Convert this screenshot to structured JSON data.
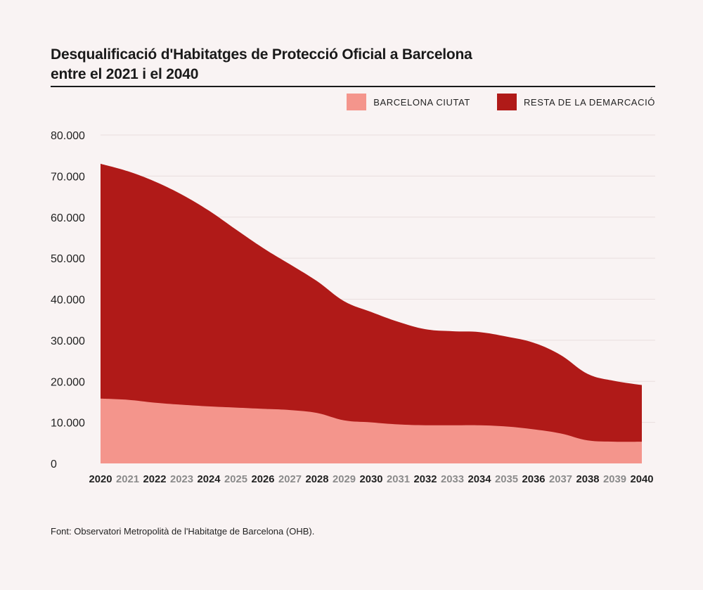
{
  "title_line1": "Desqualificació d'Habitatges de Protecció Oficial a Barcelona",
  "title_line2": "entre el 2021 i el 2040",
  "source": "Font: Observatori Metropolità de l'Habitatge de Barcelona (OHB).",
  "colors": {
    "background": "#f9f3f3",
    "barcelona_ciutat": "#f4958c",
    "resta": "#b01a18",
    "grid": "#e9dede",
    "tick_dark": "#222222",
    "tick_light": "#8a8a8a"
  },
  "chart_data": {
    "type": "area",
    "stacked": true,
    "title": "Desqualificació d'Habitatges de Protecció Oficial a Barcelona entre el 2021 i el 2040",
    "xlabel": "",
    "ylabel": "",
    "ylim": [
      0,
      80000
    ],
    "grid": true,
    "legend_position": "top-right",
    "x": [
      "2020",
      "2021",
      "2022",
      "2023",
      "2024",
      "2025",
      "2026",
      "2027",
      "2028",
      "2029",
      "2030",
      "2031",
      "2032",
      "2033",
      "2034",
      "2035",
      "2036",
      "2037",
      "2038",
      "2039",
      "2040"
    ],
    "x_emphasis": [
      true,
      false,
      true,
      false,
      true,
      false,
      true,
      false,
      true,
      false,
      true,
      false,
      true,
      false,
      true,
      false,
      true,
      false,
      true,
      false,
      true
    ],
    "yticks": [
      {
        "value": 0,
        "label": "0"
      },
      {
        "value": 10000,
        "label": "10.000"
      },
      {
        "value": 20000,
        "label": "20.000"
      },
      {
        "value": 30000,
        "label": "30.000"
      },
      {
        "value": 40000,
        "label": "40.000"
      },
      {
        "value": 50000,
        "label": "50.000"
      },
      {
        "value": 60000,
        "label": "60.000"
      },
      {
        "value": 70000,
        "label": "70.000"
      },
      {
        "value": 80000,
        "label": "80.000"
      }
    ],
    "series": [
      {
        "name": "BARCELONA CIUTAT",
        "color": "#f4958c",
        "values": [
          15800,
          15500,
          14800,
          14300,
          13900,
          13600,
          13300,
          13000,
          12300,
          10500,
          10000,
          9500,
          9300,
          9300,
          9300,
          9000,
          8300,
          7300,
          5600,
          5300,
          5300
        ]
      },
      {
        "name": "RESTA DE LA DEMARCACIÓ",
        "color": "#b01a18",
        "values": [
          57200,
          55700,
          53900,
          51200,
          47700,
          43400,
          39200,
          35500,
          32100,
          29000,
          26900,
          25000,
          23400,
          22900,
          22700,
          21900,
          21100,
          19100,
          16200,
          14800,
          13800
        ]
      }
    ],
    "totals": [
      73000,
      71200,
      68700,
      65500,
      61600,
      57000,
      52500,
      48500,
      44400,
      39500,
      36900,
      34500,
      32700,
      32200,
      32000,
      30900,
      29400,
      26400,
      21800,
      20100,
      19100
    ]
  }
}
